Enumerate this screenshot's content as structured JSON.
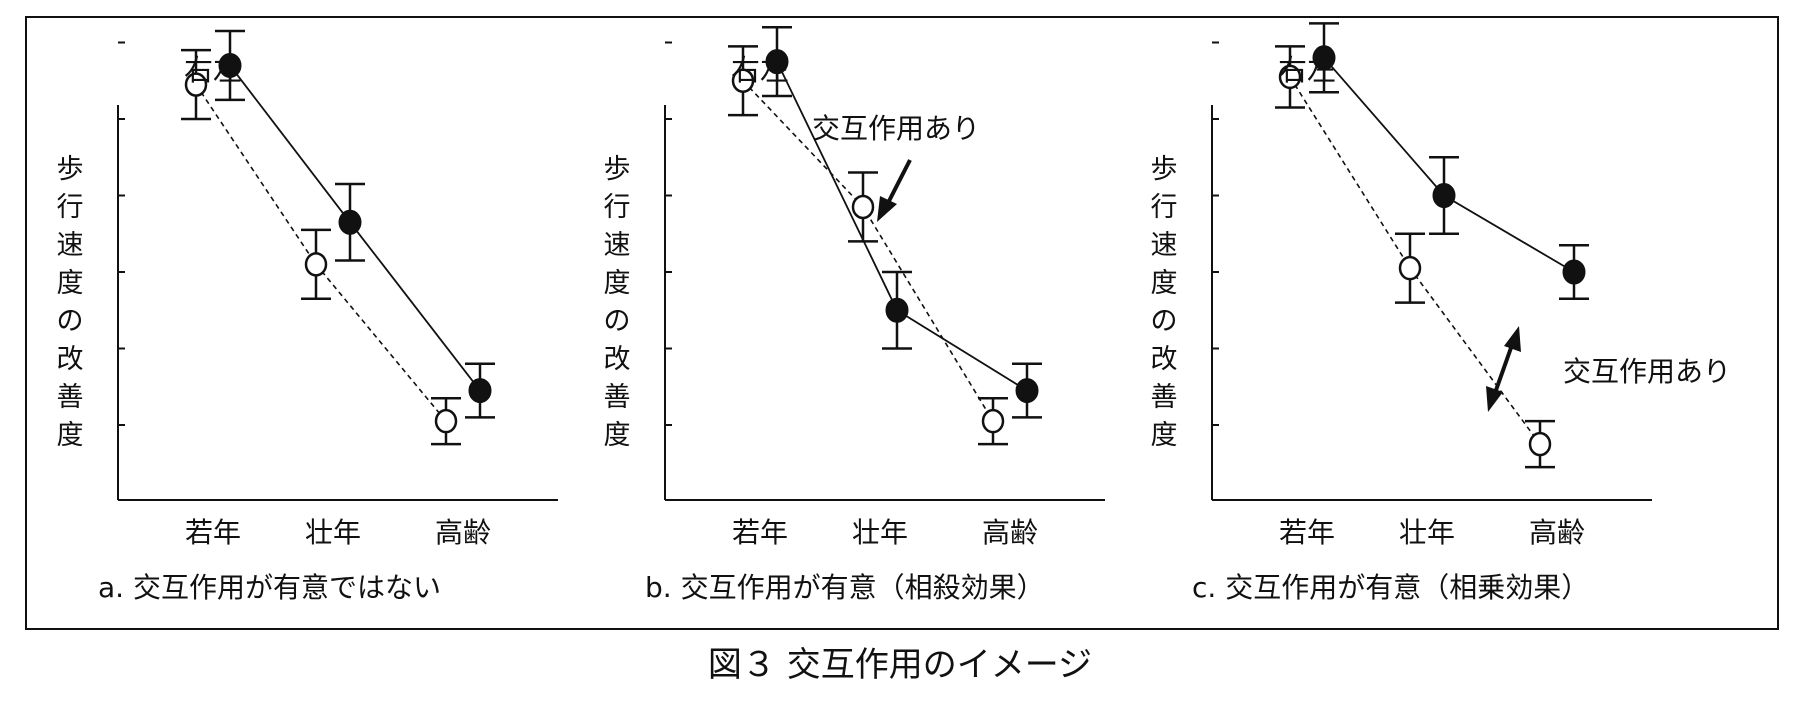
{
  "figure_caption": "図３ 交互作用のイメージ",
  "series_labels": {
    "left": "左",
    "right": "右"
  },
  "point_label": "右左",
  "ylabel": "歩行速度の改善度",
  "chart_data": [
    {
      "type": "line",
      "caption": "a. 交互作用が有意ではない",
      "categories": [
        "若年",
        "壮年",
        "高齢"
      ],
      "ylabel": "歩行速度の改善度",
      "y_tick_count": 6,
      "ylim": [
        -1,
        5
      ],
      "grid": false,
      "series": [
        {
          "name": "左",
          "marker": "open",
          "line_style": "dashed",
          "values": [
            4.45,
            2.1,
            0.05
          ],
          "err": [
            0.45,
            0.45,
            0.3
          ]
        },
        {
          "name": "右",
          "marker": "filled",
          "line_style": "solid",
          "values": [
            4.7,
            2.65,
            0.45
          ],
          "err": [
            0.45,
            0.5,
            0.35
          ]
        }
      ],
      "annotation": ""
    },
    {
      "type": "line",
      "caption": "b. 交互作用が有意（相殺効果）",
      "categories": [
        "若年",
        "壮年",
        "高齢"
      ],
      "ylabel": "歩行速度の改善度",
      "y_tick_count": 6,
      "ylim": [
        -1,
        5
      ],
      "grid": false,
      "series": [
        {
          "name": "左",
          "marker": "open",
          "line_style": "dashed",
          "values": [
            4.5,
            2.85,
            0.05
          ],
          "err": [
            0.45,
            0.45,
            0.3
          ]
        },
        {
          "name": "右",
          "marker": "filled",
          "line_style": "solid",
          "values": [
            4.75,
            1.5,
            0.45
          ],
          "err": [
            0.45,
            0.5,
            0.35
          ]
        }
      ],
      "annotation": "交互作用あり"
    },
    {
      "type": "line",
      "caption": "c. 交互作用が有意（相乗効果）",
      "categories": [
        "若年",
        "壮年",
        "高齢"
      ],
      "ylabel": "歩行速度の改善度",
      "y_tick_count": 6,
      "ylim": [
        -1,
        5
      ],
      "grid": false,
      "series": [
        {
          "name": "左",
          "marker": "open",
          "line_style": "dashed",
          "values": [
            4.55,
            2.05,
            -0.25
          ],
          "err": [
            0.4,
            0.45,
            0.3
          ]
        },
        {
          "name": "右",
          "marker": "filled",
          "line_style": "solid",
          "values": [
            4.8,
            3.0,
            2.0
          ],
          "err": [
            0.45,
            0.5,
            0.35
          ]
        }
      ],
      "annotation": "交互作用あり"
    }
  ]
}
